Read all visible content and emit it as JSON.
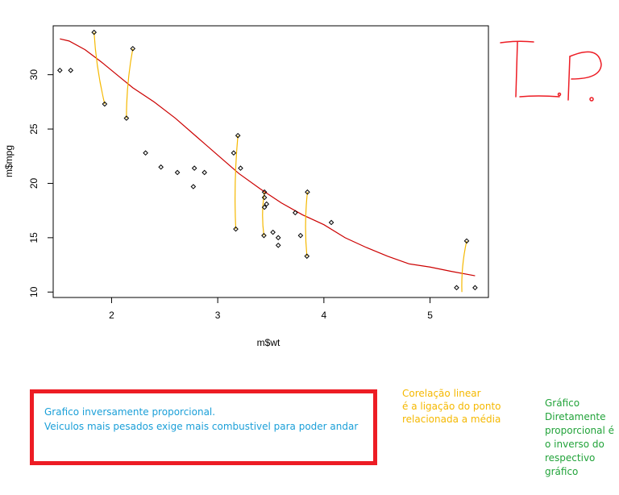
{
  "chart_data": {
    "type": "scatter",
    "title": "",
    "xlabel": "m$wt",
    "ylabel": "m$mpg",
    "xlim": [
      1.45,
      5.55
    ],
    "ylim": [
      9.5,
      34.5
    ],
    "x_ticks": [
      2,
      3,
      4,
      5
    ],
    "y_ticks": [
      10,
      15,
      20,
      25,
      30
    ],
    "grid": false,
    "legend": "none",
    "points": [
      {
        "x": 2.62,
        "y": 21.0
      },
      {
        "x": 2.875,
        "y": 21.0
      },
      {
        "x": 2.32,
        "y": 22.8
      },
      {
        "x": 3.215,
        "y": 21.4
      },
      {
        "x": 3.44,
        "y": 18.7
      },
      {
        "x": 3.46,
        "y": 18.1
      },
      {
        "x": 3.57,
        "y": 14.3
      },
      {
        "x": 3.19,
        "y": 24.4
      },
      {
        "x": 3.15,
        "y": 22.8
      },
      {
        "x": 3.44,
        "y": 19.2
      },
      {
        "x": 3.44,
        "y": 17.8
      },
      {
        "x": 4.07,
        "y": 16.4
      },
      {
        "x": 3.73,
        "y": 17.3
      },
      {
        "x": 3.78,
        "y": 15.2
      },
      {
        "x": 5.25,
        "y": 10.4
      },
      {
        "x": 5.424,
        "y": 10.4
      },
      {
        "x": 5.345,
        "y": 14.7
      },
      {
        "x": 2.2,
        "y": 32.4
      },
      {
        "x": 1.615,
        "y": 30.4
      },
      {
        "x": 1.835,
        "y": 33.9
      },
      {
        "x": 2.465,
        "y": 21.5
      },
      {
        "x": 3.52,
        "y": 15.5
      },
      {
        "x": 3.435,
        "y": 15.2
      },
      {
        "x": 3.84,
        "y": 13.3
      },
      {
        "x": 3.845,
        "y": 19.2
      },
      {
        "x": 1.935,
        "y": 27.3
      },
      {
        "x": 2.14,
        "y": 26.0
      },
      {
        "x": 1.513,
        "y": 30.4
      },
      {
        "x": 3.17,
        "y": 15.8
      },
      {
        "x": 2.77,
        "y": 19.7
      },
      {
        "x": 3.57,
        "y": 15.0
      },
      {
        "x": 2.78,
        "y": 21.4
      }
    ],
    "trend_line": {
      "color": "#cc0000",
      "x": [
        1.513,
        1.6,
        1.75,
        1.9,
        2.05,
        2.2,
        2.4,
        2.6,
        2.8,
        3.0,
        3.2,
        3.4,
        3.6,
        3.8,
        4.0,
        4.2,
        4.4,
        4.6,
        4.8,
        5.0,
        5.2,
        5.424
      ],
      "y": [
        33.3,
        33.1,
        32.3,
        31.2,
        30.0,
        28.8,
        27.5,
        26.0,
        24.3,
        22.6,
        20.9,
        19.5,
        18.2,
        17.1,
        16.2,
        15.0,
        14.1,
        13.3,
        12.6,
        12.3,
        11.9,
        11.5
      ]
    },
    "annotation_lines": {
      "color": "#f5b800",
      "segments": [
        {
          "from": {
            "x": 1.835,
            "y": 33.9
          },
          "to": {
            "x": 1.935,
            "y": 27.3
          }
        },
        {
          "from": {
            "x": 2.2,
            "y": 32.4
          },
          "to": {
            "x": 2.14,
            "y": 26.0
          }
        },
        {
          "from": {
            "x": 3.19,
            "y": 24.4
          },
          "to": {
            "x": 3.17,
            "y": 15.8
          }
        },
        {
          "from": {
            "x": 3.44,
            "y": 19.2
          },
          "to": {
            "x": 3.435,
            "y": 15.2
          }
        },
        {
          "from": {
            "x": 3.845,
            "y": 19.2
          },
          "to": {
            "x": 3.84,
            "y": 13.3
          }
        },
        {
          "from": {
            "x": 5.345,
            "y": 14.7
          },
          "to": {
            "x": 5.3,
            "y": 10.0
          }
        }
      ]
    }
  },
  "handwriting": {
    "text": "I.P.",
    "color": "#ed1c24"
  },
  "notes": {
    "box_border_color": "#ed1c24",
    "box_line1": "Grafico inversamente proporcional.",
    "box_line2": "Veiculos mais pesados exige mais combustivel para poder andar",
    "yellow_line1": "Corelação linear",
    "yellow_line2": "é a ligação do ponto",
    "yellow_line3": "relacionada  a média",
    "green_line1": "Gráfico",
    "green_line2": "Diretamente",
    "green_line3": "proporcional é",
    "green_line4": "o inverso do",
    "green_line5": "respectivo",
    "green_line6": "gráfico"
  }
}
